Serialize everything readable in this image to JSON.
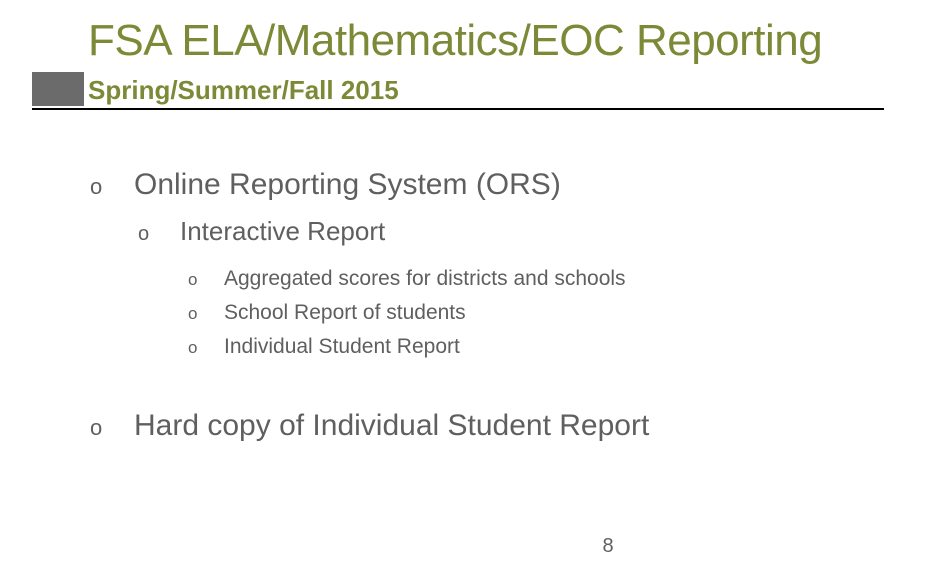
{
  "colors": {
    "title": "#7c8a38",
    "subtitle": "#7c8a38",
    "body_text": "#5f5f5f",
    "accent_square": "#6b6b6b",
    "underline": "#000000",
    "background": "#ffffff"
  },
  "title": "FSA ELA/Mathematics/EOC Reporting",
  "subtitle": "Spring/Summer/Fall 2015",
  "bullet_glyph": "o",
  "content": {
    "item1": {
      "label": "Online Reporting System (ORS)",
      "sub1": {
        "label": "Interactive Report",
        "points": {
          "p1": "Aggregated scores for districts and schools",
          "p2": "School Report of students",
          "p3": "Individual Student Report"
        }
      }
    },
    "item2": {
      "label": "Hard copy of Individual Student Report"
    }
  },
  "page_number": "8"
}
